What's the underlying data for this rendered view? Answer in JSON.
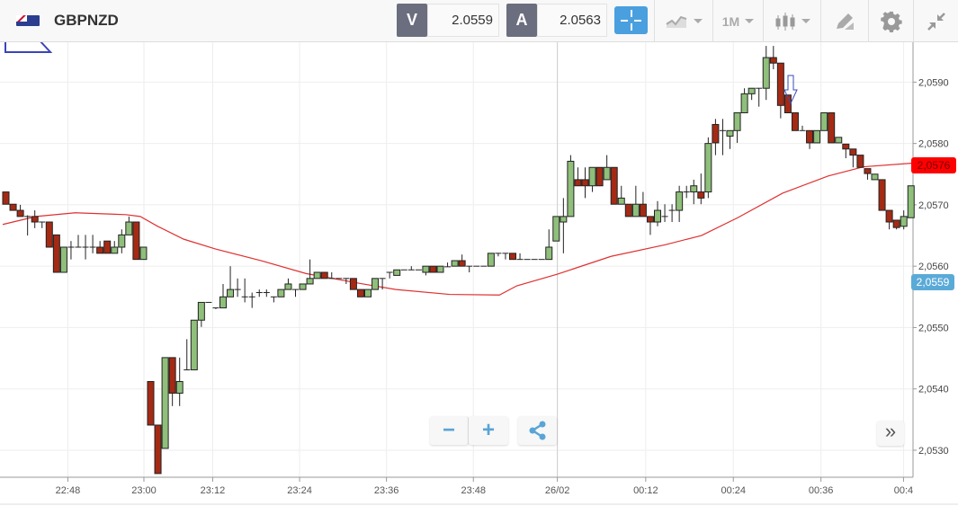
{
  "header": {
    "symbol": "GBPNZD",
    "bid_label": "V",
    "bid_value": "2.0559",
    "ask_label": "A",
    "ask_value": "2.0563",
    "timeframe": "1M"
  },
  "icons": [
    "flag-gb-nz-icon",
    "crosshair-icon",
    "chart-type-icon",
    "candlestick-icon",
    "draw-pencil-icon",
    "gear-icon",
    "compress-icon",
    "zoom-out-icon",
    "zoom-in-icon",
    "share-icon",
    "scroll-right-icon"
  ],
  "controls": {
    "zoom_out": "−",
    "zoom_in": "+",
    "scroll_right": "»"
  },
  "colors": {
    "up": "#8fbf7a",
    "down": "#a52a14",
    "ma": "#e03030",
    "accent": "#4a9fde",
    "current_tag": "#ff0000",
    "bid_tag": "#5aaad8"
  },
  "chart_data": {
    "type": "candlestick",
    "symbol": "GBPNZD",
    "ylim": [
      2.05256,
      2.05965
    ],
    "y_ticks": [
      "2,0590",
      "2,0580",
      "2,0570",
      "2,0560",
      "2,0550",
      "2,0540",
      "2,0530"
    ],
    "y_tick_values": [
      2.059,
      2.058,
      2.057,
      2.056,
      2.055,
      2.054,
      2.053
    ],
    "x_ticks": [
      "22:48",
      "23:00",
      "23:12",
      "23:24",
      "23:36",
      "23:48",
      "26/02",
      "00:12",
      "00:24",
      "00:36",
      "00:4"
    ],
    "tags": {
      "ma_last": "2,0576",
      "bid": "2,0559"
    },
    "candles": [
      [
        2.05721,
        2.05721,
        2.05701,
        2.05701
      ],
      [
        2.05701,
        2.05701,
        2.05691,
        2.05691
      ],
      [
        2.05691,
        2.057,
        2.05681,
        2.05681
      ],
      [
        2.05681,
        2.05683,
        2.0565,
        2.05681
      ],
      [
        2.05681,
        2.05691,
        2.05662,
        2.05672
      ],
      [
        2.05672,
        2.05672,
        2.05662,
        2.05672
      ],
      [
        2.05672,
        2.05672,
        2.05631,
        2.05631
      ],
      [
        2.05651,
        2.05651,
        2.0559,
        2.0559
      ],
      [
        2.0559,
        2.05631,
        2.0559,
        2.05631
      ],
      [
        2.05631,
        2.05641,
        2.05611,
        2.05631
      ],
      [
        2.05631,
        2.05651,
        2.05631,
        2.05631
      ],
      [
        2.05631,
        2.05651,
        2.05611,
        2.05631
      ],
      [
        2.05631,
        2.05651,
        2.05621,
        2.05631
      ],
      [
        2.05631,
        2.05641,
        2.05621,
        2.05621
      ],
      [
        2.05641,
        2.05641,
        2.05621,
        2.05621
      ],
      [
        2.05621,
        2.05641,
        2.05621,
        2.05631
      ],
      [
        2.05631,
        2.0566,
        2.05621,
        2.05651
      ],
      [
        2.05651,
        2.05681,
        2.05651,
        2.05672
      ],
      [
        2.05672,
        2.05672,
        2.05611,
        2.05611
      ],
      [
        2.05611,
        2.05631,
        2.05611,
        2.05631
      ],
      [
        2.05412,
        2.05412,
        2.05341,
        2.05341
      ],
      [
        2.05341,
        2.05341,
        2.05262,
        2.05262
      ],
      [
        2.05303,
        2.05451,
        2.05303,
        2.05451
      ],
      [
        2.05451,
        2.05451,
        2.05372,
        2.05393
      ],
      [
        2.05393,
        2.05451,
        2.05372,
        2.05412
      ],
      [
        2.05431,
        2.05481,
        2.05431,
        2.05431
      ],
      [
        2.05431,
        2.05512,
        2.05431,
        2.05512
      ],
      [
        2.05512,
        2.05541,
        2.05501,
        2.05541
      ],
      [
        2.05541,
        2.05541,
        2.05541,
        2.05541
      ],
      [
        2.05532,
        2.05532,
        2.0553,
        2.05532
      ],
      [
        2.05532,
        2.05571,
        2.05532,
        2.0555
      ],
      [
        2.0555,
        2.056,
        2.0555,
        2.05562
      ],
      [
        2.05562,
        2.0558,
        2.0555,
        2.05562
      ],
      [
        2.0555,
        2.0558,
        2.05541,
        2.0555
      ],
      [
        2.0555,
        2.05557,
        2.05532,
        2.0555
      ],
      [
        2.05557,
        2.05562,
        2.0555,
        2.05557
      ],
      [
        2.05557,
        2.05562,
        2.0555,
        2.05557
      ],
      [
        2.0555,
        2.0555,
        2.05541,
        2.0555
      ],
      [
        2.0555,
        2.05562,
        2.0555,
        2.05562
      ],
      [
        2.05562,
        2.0558,
        2.05562,
        2.05571
      ],
      [
        2.05562,
        2.05562,
        2.0555,
        2.05562
      ],
      [
        2.05562,
        2.05571,
        2.05562,
        2.05571
      ],
      [
        2.05571,
        2.05611,
        2.05571,
        2.0558
      ],
      [
        2.0558,
        2.0559,
        2.0558,
        2.0559
      ],
      [
        2.0559,
        2.0559,
        2.0558,
        2.0558
      ],
      [
        2.0558,
        2.0559,
        2.0558,
        2.0558
      ],
      [
        2.0558,
        2.0558,
        2.0558,
        2.0558
      ],
      [
        2.0558,
        2.0558,
        2.05571,
        2.0558
      ],
      [
        2.0558,
        2.0558,
        2.05562,
        2.05562
      ],
      [
        2.05562,
        2.05562,
        2.0555,
        2.0555
      ],
      [
        2.0555,
        2.05562,
        2.0555,
        2.05562
      ],
      [
        2.05562,
        2.0558,
        2.05562,
        2.0558
      ],
      [
        2.0558,
        2.0558,
        2.05562,
        2.0558
      ],
      [
        2.0559,
        2.0559,
        2.0558,
        2.0559
      ],
      [
        2.05585,
        2.05594,
        2.05585,
        2.05594
      ],
      [
        2.05594,
        2.05594,
        2.05594,
        2.05594
      ],
      [
        2.05594,
        2.056,
        2.05594,
        2.05594
      ],
      [
        2.05594,
        2.05594,
        2.05594,
        2.05594
      ],
      [
        2.0559,
        2.056,
        2.05585,
        2.056
      ],
      [
        2.056,
        2.056,
        2.0559,
        2.0559
      ],
      [
        2.0559,
        2.056,
        2.0559,
        2.056
      ],
      [
        2.05599,
        2.05606,
        2.05599,
        2.05599
      ],
      [
        2.056,
        2.05609,
        2.056,
        2.05609
      ],
      [
        2.05609,
        2.05619,
        2.056,
        2.056
      ],
      [
        2.056,
        2.056,
        2.0559,
        2.056
      ],
      [
        2.056,
        2.056,
        2.056,
        2.056
      ],
      [
        2.056,
        2.056,
        2.056,
        2.056
      ],
      [
        2.056,
        2.05621,
        2.056,
        2.05621
      ],
      [
        2.05621,
        2.05621,
        2.05616,
        2.05621
      ],
      [
        2.05621,
        2.05621,
        2.05611,
        2.05621
      ],
      [
        2.05621,
        2.05621,
        2.05611,
        2.05611
      ],
      [
        2.05611,
        2.05621,
        2.05611,
        2.05611
      ],
      [
        2.05611,
        2.05611,
        2.05611,
        2.05611
      ],
      [
        2.05611,
        2.05611,
        2.05611,
        2.05611
      ],
      [
        2.05611,
        2.05611,
        2.05611,
        2.05611
      ],
      [
        2.05611,
        2.0566,
        2.05611,
        2.05631
      ],
      [
        2.05641,
        2.05681,
        2.05641,
        2.05681
      ],
      [
        2.05672,
        2.05711,
        2.05621,
        2.05681
      ],
      [
        2.05681,
        2.05781,
        2.05681,
        2.05771
      ],
      [
        2.05741,
        2.05761,
        2.05731,
        2.05731
      ],
      [
        2.05741,
        2.05761,
        2.05711,
        2.05731
      ],
      [
        2.05731,
        2.05761,
        2.05721,
        2.05761
      ],
      [
        2.05761,
        2.05761,
        2.05731,
        2.05731
      ],
      [
        2.05741,
        2.05781,
        2.05741,
        2.05761
      ],
      [
        2.05761,
        2.05761,
        2.05701,
        2.05701
      ],
      [
        2.05701,
        2.05731,
        2.05701,
        2.05711
      ],
      [
        2.05701,
        2.05701,
        2.05681,
        2.05681
      ],
      [
        2.05681,
        2.05731,
        2.05681,
        2.05701
      ],
      [
        2.05701,
        2.05721,
        2.05681,
        2.05681
      ],
      [
        2.05681,
        2.05681,
        2.05651,
        2.05672
      ],
      [
        2.05672,
        2.05706,
        2.05665,
        2.05691
      ],
      [
        2.05681,
        2.05701,
        2.05672,
        2.05681
      ],
      [
        2.05691,
        2.05701,
        2.05672,
        2.05691
      ],
      [
        2.05691,
        2.05731,
        2.05672,
        2.05721
      ],
      [
        2.05721,
        2.05731,
        2.05711,
        2.05721
      ],
      [
        2.05721,
        2.05741,
        2.05701,
        2.05731
      ],
      [
        2.05721,
        2.05751,
        2.05701,
        2.05711
      ],
      [
        2.05721,
        2.0581,
        2.05711,
        2.058
      ],
      [
        2.05831,
        2.0584,
        2.05781,
        2.05801
      ],
      [
        2.05821,
        2.0584,
        2.05781,
        2.05821
      ],
      [
        2.05812,
        2.05821,
        2.05791,
        2.05821
      ],
      [
        2.05821,
        2.0585,
        2.05801,
        2.0585
      ],
      [
        2.0585,
        2.0589,
        2.0585,
        2.05881
      ],
      [
        2.05881,
        2.0589,
        2.05871,
        2.0589
      ],
      [
        2.0589,
        2.0589,
        2.0586,
        2.0589
      ],
      [
        2.0589,
        2.05959,
        2.05871,
        2.0594
      ],
      [
        2.0594,
        2.05959,
        2.05921,
        2.05931
      ],
      [
        2.05931,
        2.05931,
        2.05841,
        2.05862
      ],
      [
        2.05879,
        2.05879,
        2.0585,
        2.0585
      ],
      [
        2.0585,
        2.0585,
        2.05821,
        2.05821
      ],
      [
        2.05821,
        2.05829,
        2.05821,
        2.05821
      ],
      [
        2.05821,
        2.05821,
        2.05791,
        2.05801
      ],
      [
        2.05801,
        2.05821,
        2.05801,
        2.05821
      ],
      [
        2.05821,
        2.0585,
        2.05821,
        2.0585
      ],
      [
        2.0585,
        2.0585,
        2.05801,
        2.05801
      ],
      [
        2.05801,
        2.0581,
        2.05801,
        2.0581
      ],
      [
        2.05799,
        2.05799,
        2.05776,
        2.05791
      ],
      [
        2.05791,
        2.05791,
        2.05761,
        2.05781
      ],
      [
        2.05781,
        2.05781,
        2.05761,
        2.05761
      ],
      [
        2.05759,
        2.05759,
        2.05741,
        2.05751
      ],
      [
        2.05741,
        2.0575,
        2.05741,
        2.0575
      ],
      [
        2.05741,
        2.05741,
        2.05691,
        2.05691
      ],
      [
        2.05691,
        2.05691,
        2.0566,
        2.05672
      ],
      [
        2.05675,
        2.05675,
        2.0566,
        2.05663
      ],
      [
        2.05665,
        2.05691,
        2.0566,
        2.05681
      ],
      [
        2.05679,
        2.05731,
        2.05679,
        2.05731
      ]
    ],
    "moving_average": [
      [
        0,
        2.05668
      ],
      [
        4.6,
        2.05681
      ],
      [
        10,
        2.05687
      ],
      [
        17,
        2.05684
      ],
      [
        19,
        2.05681
      ],
      [
        21.4,
        2.05665
      ],
      [
        25,
        2.05644
      ],
      [
        29.4,
        2.05628
      ],
      [
        35.7,
        2.05609
      ],
      [
        41.9,
        2.05588
      ],
      [
        49.3,
        2.05572
      ],
      [
        54.3,
        2.05562
      ],
      [
        61.7,
        2.05554
      ],
      [
        68.6,
        2.05553
      ],
      [
        71,
        2.05568
      ],
      [
        76.6,
        2.05587
      ],
      [
        84,
        2.05616
      ],
      [
        91.5,
        2.05635
      ],
      [
        96.5,
        2.0565
      ],
      [
        101.5,
        2.05679
      ],
      [
        107.7,
        2.05719
      ],
      [
        114,
        2.05747
      ],
      [
        118.9,
        2.05762
      ],
      [
        125.7,
        2.05768
      ]
    ]
  }
}
